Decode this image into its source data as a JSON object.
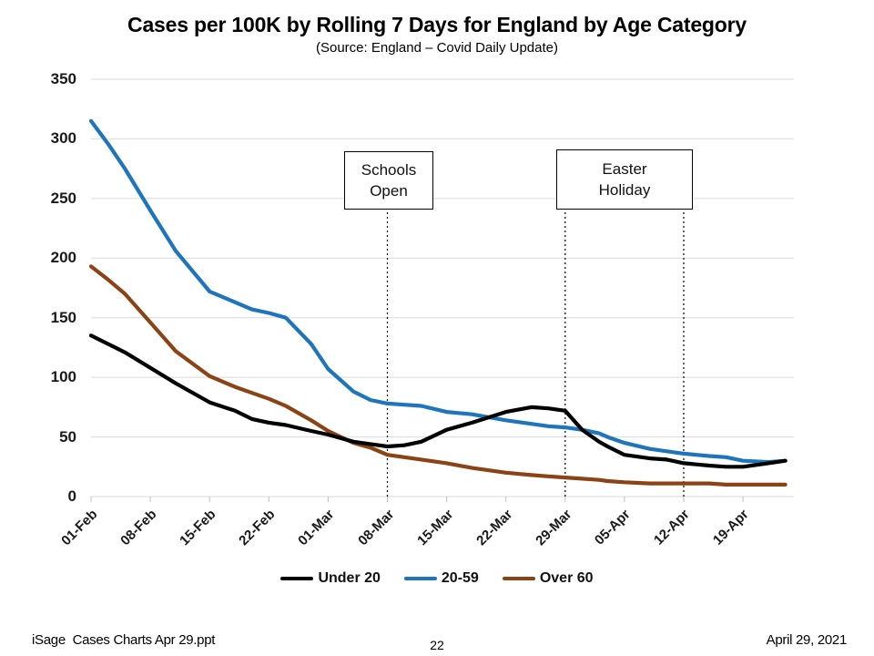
{
  "slide": {
    "title": "Cases per 100K by Rolling 7 Days for England by Age Category",
    "subtitle": "(Source: England – Covid Daily Update)",
    "footer_left": "iSage  Cases Charts Apr 29.ppt",
    "page_number": "22",
    "footer_right": "April 29, 2021"
  },
  "chart_data": {
    "type": "line",
    "title": "Cases per 100K by Rolling 7 Days for England by Age Category",
    "source": "(Source: England – Covid Daily Update)",
    "grid": "horizontal",
    "grid_color": "#D9D9D9",
    "x_axis": {
      "tick_labels": [
        "01-Feb",
        "08-Feb",
        "15-Feb",
        "22-Feb",
        "01-Mar",
        "08-Mar",
        "15-Mar",
        "22-Mar",
        "29-Mar",
        "05-Apr",
        "12-Apr",
        "19-Apr"
      ]
    },
    "y_axis": {
      "ticks": [
        0,
        50,
        100,
        150,
        200,
        250,
        300,
        350
      ],
      "range": [
        0,
        350
      ]
    },
    "x_days": [
      0,
      2,
      4,
      7,
      10,
      14,
      17,
      19,
      21,
      23,
      26,
      28,
      31,
      33,
      35,
      37,
      39,
      42,
      45,
      49,
      52,
      54,
      56,
      58,
      60,
      61,
      63,
      66,
      68,
      70,
      73,
      75,
      77,
      80,
      82
    ],
    "series": [
      {
        "name": "Under 20",
        "color": "#000000",
        "values": [
          135,
          128,
          121,
          108,
          95,
          79,
          72,
          65,
          62,
          60,
          55,
          52,
          46,
          44,
          42,
          43,
          46,
          56,
          62,
          71,
          75,
          74,
          72,
          56,
          46,
          42,
          35,
          32,
          31,
          28,
          26,
          25,
          25,
          28,
          30
        ]
      },
      {
        "name": "20-59",
        "color": "#1F75BC",
        "values": [
          315,
          296,
          275,
          240,
          206,
          172,
          163,
          157,
          154,
          150,
          128,
          107,
          88,
          81,
          78,
          77,
          76,
          71,
          69,
          64,
          61,
          59,
          58,
          56,
          53,
          50,
          45,
          40,
          38,
          36,
          34,
          33,
          30,
          29,
          30
        ]
      },
      {
        "name": "Over 60",
        "color": "#8B4315",
        "values": [
          193,
          182,
          170,
          146,
          122,
          101,
          92,
          87,
          82,
          76,
          64,
          55,
          45,
          41,
          35,
          33,
          31,
          28,
          24,
          20,
          18,
          17,
          16,
          15,
          14,
          13,
          12,
          11,
          11,
          11,
          11,
          10,
          10,
          10,
          10
        ]
      }
    ],
    "legend": {
      "position": "bottom",
      "entries": [
        "Under 20",
        "20-59",
        "Over 60"
      ]
    },
    "annotations": [
      {
        "label": [
          "Schools",
          "Open"
        ],
        "line_days": [
          35
        ]
      },
      {
        "label": [
          "Easter",
          "Holiday"
        ],
        "line_days": [
          56,
          70
        ]
      }
    ]
  }
}
